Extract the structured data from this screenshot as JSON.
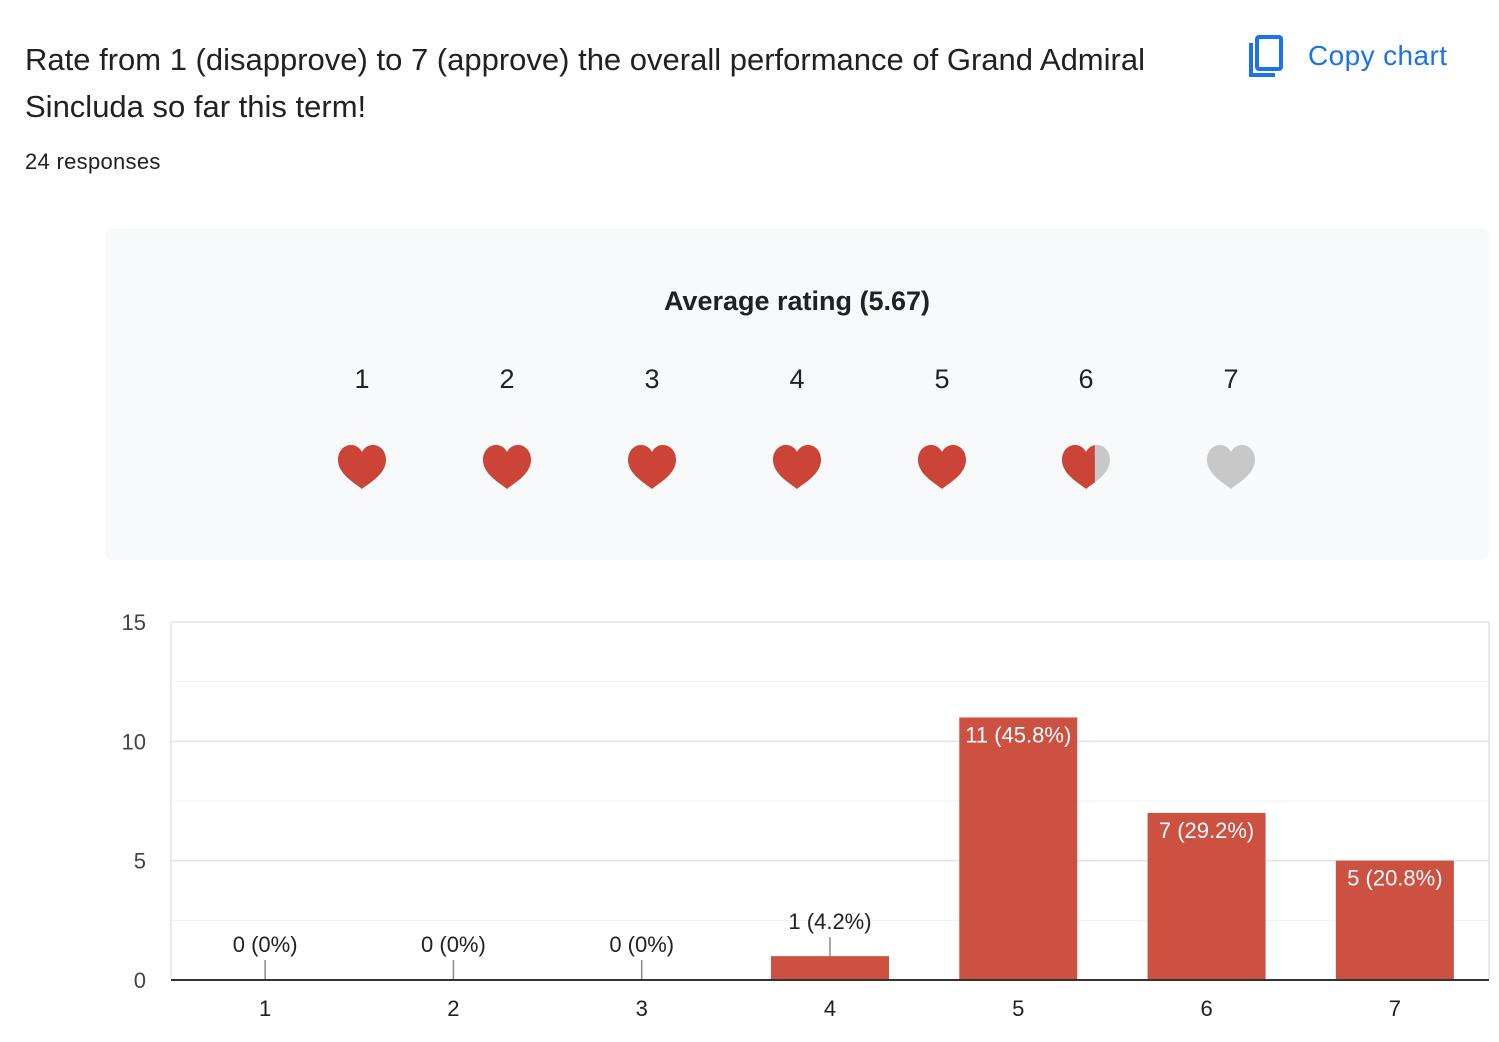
{
  "question": {
    "title": "Rate from 1 (disapprove) to 7 (approve) the overall performance of Grand Admiral Sincluda so far this term!",
    "response_count": "24 responses"
  },
  "toolbar": {
    "copy_chart_label": "Copy chart"
  },
  "rating": {
    "title": "Average rating (5.67)",
    "average": 5.67,
    "scale": [
      "1",
      "2",
      "3",
      "4",
      "5",
      "6",
      "7"
    ],
    "icon": "heart-icon"
  },
  "colors": {
    "accent": "#1a73e8",
    "bar": "#cc5140",
    "heart_filled": "#cc4437",
    "heart_empty": "#c8c8c8",
    "panel_background": "#f8f9fa"
  },
  "chart_data": {
    "type": "bar",
    "categories": [
      "1",
      "2",
      "3",
      "4",
      "5",
      "6",
      "7"
    ],
    "values": [
      0,
      0,
      0,
      1,
      11,
      7,
      5
    ],
    "data_labels": [
      "0 (0%)",
      "0 (0%)",
      "0 (0%)",
      "1 (4.2%)",
      "11 (45.8%)",
      "7 (29.2%)",
      "5 (20.8%)"
    ],
    "ylim": [
      0,
      15
    ],
    "yticks": [
      0,
      5,
      10,
      15
    ],
    "grid": true,
    "xlabel": "",
    "ylabel": ""
  }
}
